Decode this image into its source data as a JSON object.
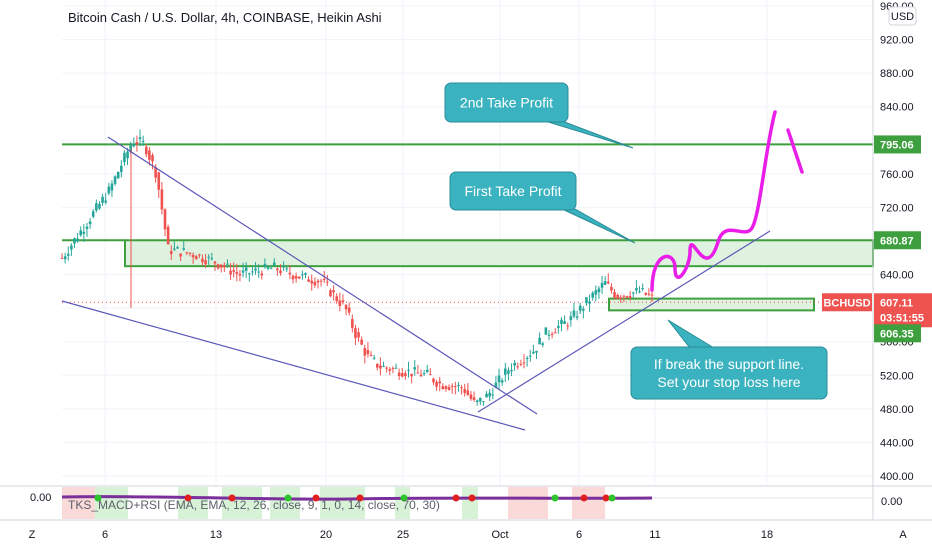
{
  "header": {
    "title": "Bitcoin Cash / U.S. Dollar, 4h, COINBASE, Heikin Ashi",
    "currency": "USD"
  },
  "colors": {
    "up": "#26a69a",
    "down": "#ef5350",
    "zone_line": "#3d9f3d",
    "zone_fill": "#dff2df",
    "trendline": "#5b58b8",
    "projection": "#e91ee9",
    "callout": "#3bb2bf",
    "price_tag": "#ef5350"
  },
  "chart_data": {
    "type": "candlestick",
    "ylim": [
      380,
      960
    ],
    "y_ticks": [
      "960.00",
      "920.00",
      "880.00",
      "840.00",
      "800.00",
      "760.00",
      "720.00",
      "680.00",
      "640.00",
      "600.00",
      "560.00",
      "520.00",
      "480.00",
      "440.00",
      "400.00"
    ],
    "x_ticks": [
      "6",
      "13",
      "20",
      "25",
      "Oct",
      "6",
      "11",
      "18"
    ],
    "price_tags": {
      "take_profit_2": "795.06",
      "take_profit_1": "680.87",
      "symbol": "BCHUSD",
      "last_price": "607.11",
      "countdown": "03:51:55",
      "stop_loss": "606.35"
    },
    "levels": [
      {
        "value": 795.06
      },
      {
        "value": 680.87
      },
      {
        "value": 606.35
      }
    ],
    "annotations": [
      {
        "text": "2nd Take Profit"
      },
      {
        "text": "First Take Profit"
      },
      {
        "text": "If break the support line.\nSet your stop loss here"
      }
    ],
    "indicator": {
      "label": "TKS_MACD+RSI (EMA, EMA, 12, 26, close, 9, 1, 0, 14, close, 70, 30)",
      "left_value": "0.00",
      "right_value": "0.00"
    },
    "path": [
      [
        0,
        660
      ],
      [
        2,
        700
      ],
      [
        4,
        740
      ],
      [
        6,
        800
      ],
      [
        7,
        795
      ],
      [
        8,
        760
      ],
      [
        9,
        670
      ],
      [
        11,
        665
      ],
      [
        13,
        655
      ],
      [
        15,
        640
      ],
      [
        18,
        648
      ],
      [
        20,
        638
      ],
      [
        22,
        632
      ],
      [
        24,
        600
      ],
      [
        25,
        565
      ],
      [
        26,
        540
      ],
      [
        27,
        530
      ],
      [
        29,
        525
      ],
      [
        31,
        520
      ],
      [
        32,
        510
      ],
      [
        34,
        505
      ],
      [
        35,
        485
      ],
      [
        36,
        495
      ],
      [
        38,
        530
      ],
      [
        40,
        550
      ],
      [
        41,
        570
      ],
      [
        43,
        585
      ],
      [
        45,
        615
      ],
      [
        46,
        630
      ],
      [
        47,
        615
      ],
      [
        49,
        620
      ],
      [
        50,
        612
      ]
    ]
  },
  "bottom_bar": {
    "left_button": "Z",
    "right_button": "A"
  }
}
